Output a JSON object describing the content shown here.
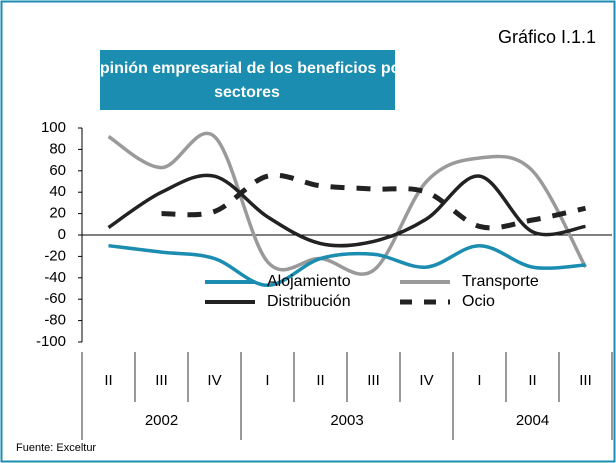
{
  "chart_data": {
    "type": "line",
    "label": "Gráfico I.1.1",
    "title": [
      "Opinión empresarial de los beneficios por",
      "sectores"
    ],
    "categories": [
      "II",
      "III",
      "IV",
      "I",
      "II",
      "III",
      "IV",
      "I",
      "II",
      "III"
    ],
    "years": [
      "2002",
      "2003",
      "2004"
    ],
    "series": [
      {
        "name": "Alojamiento",
        "color": "#1b8db0",
        "values": [
          -10,
          -16,
          -22,
          -47,
          -22,
          -18,
          -30,
          -10,
          -30,
          -28
        ]
      },
      {
        "name": "Transporte",
        "color": "#9a9a9a",
        "values": [
          92,
          63,
          92,
          -25,
          -22,
          -33,
          50,
          72,
          60,
          -30
        ]
      },
      {
        "name": "Distribución",
        "color": "#222222",
        "values": [
          7,
          40,
          55,
          17,
          -8,
          -6,
          15,
          55,
          3,
          8
        ]
      },
      {
        "name": "Ocio",
        "color": "#222222",
        "dashed": true,
        "values": [
          null,
          20,
          22,
          55,
          46,
          43,
          40,
          8,
          14,
          25
        ]
      }
    ],
    "ylim": [
      -100,
      100
    ],
    "yticks": [
      -100,
      -80,
      -60,
      -40,
      -20,
      0,
      20,
      40,
      60,
      80,
      100
    ],
    "source": "Fuente: Exceltur"
  }
}
